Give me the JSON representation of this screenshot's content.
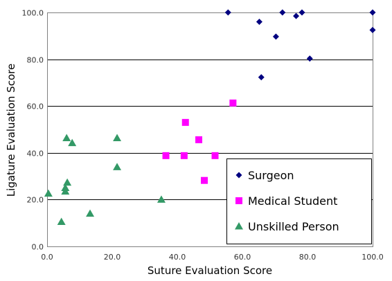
{
  "chart_data": {
    "type": "scatter",
    "xlabel": "Suture Evaluation Score",
    "ylabel": "Ligature Evaluation Score",
    "xlim": [
      0,
      100
    ],
    "ylim": [
      0,
      100
    ],
    "x_ticks": [
      "0.0",
      "20.0",
      "40.0",
      "60.0",
      "80.0",
      "100.0"
    ],
    "y_ticks": [
      "0.0",
      "20.0",
      "40.0",
      "60.0",
      "80.0",
      "100.0"
    ],
    "grid": "horizontal",
    "legend_position": "bottom-right",
    "series": [
      {
        "name": "Surgeon",
        "marker": "diamond",
        "color": "#000080",
        "points": [
          {
            "x": 55.6,
            "y": 100.0
          },
          {
            "x": 65.2,
            "y": 96.0
          },
          {
            "x": 72.3,
            "y": 100.0
          },
          {
            "x": 76.5,
            "y": 98.5
          },
          {
            "x": 78.3,
            "y": 100.0
          },
          {
            "x": 100.0,
            "y": 100.0
          },
          {
            "x": 100.0,
            "y": 92.5
          },
          {
            "x": 70.3,
            "y": 89.7
          },
          {
            "x": 80.7,
            "y": 80.3
          },
          {
            "x": 65.8,
            "y": 72.3
          }
        ]
      },
      {
        "name": "Medical Student",
        "marker": "square",
        "color": "#ff00ff",
        "points": [
          {
            "x": 57.1,
            "y": 61.3
          },
          {
            "x": 42.5,
            "y": 53.0
          },
          {
            "x": 46.6,
            "y": 45.6
          },
          {
            "x": 36.5,
            "y": 38.8
          },
          {
            "x": 42.1,
            "y": 38.8
          },
          {
            "x": 51.6,
            "y": 38.8
          },
          {
            "x": 48.3,
            "y": 28.2
          }
        ]
      },
      {
        "name": "Unskilled Person",
        "marker": "triangle",
        "color": "#339966",
        "points": [
          {
            "x": 6.0,
            "y": 46.3
          },
          {
            "x": 21.5,
            "y": 46.3
          },
          {
            "x": 7.7,
            "y": 44.2
          },
          {
            "x": 21.5,
            "y": 33.9
          },
          {
            "x": 6.2,
            "y": 27.3
          },
          {
            "x": 5.6,
            "y": 25.0
          },
          {
            "x": 5.6,
            "y": 23.5
          },
          {
            "x": 0.4,
            "y": 22.6
          },
          {
            "x": 35.1,
            "y": 20.0
          },
          {
            "x": 13.2,
            "y": 14.0
          },
          {
            "x": 4.4,
            "y": 10.5
          }
        ]
      }
    ]
  }
}
